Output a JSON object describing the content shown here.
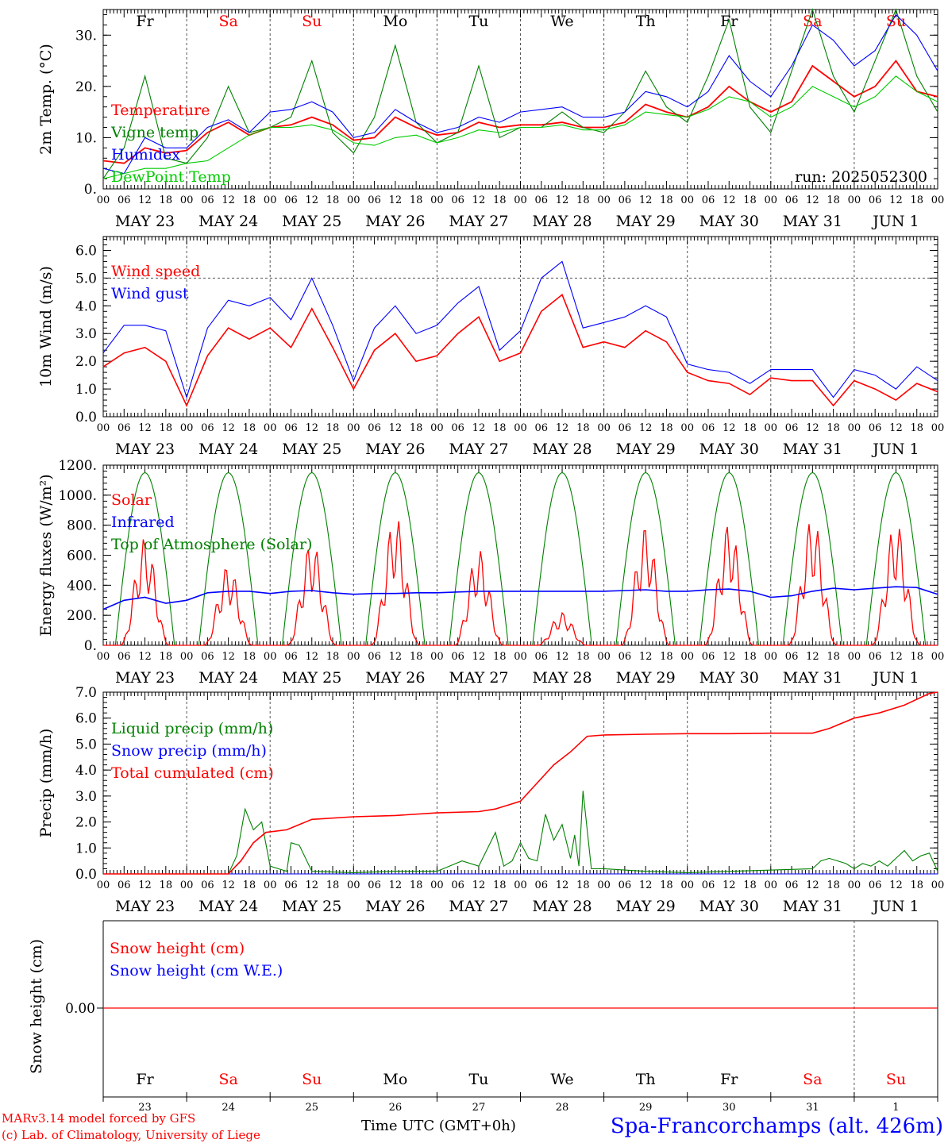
{
  "colors": {
    "red": "#ff0000",
    "blue": "#0000ff",
    "dark_green": "#008000",
    "light_green": "#00cc00",
    "axis": "#000000",
    "dashed": "#555555"
  },
  "days": {
    "dates": [
      "MAY 23",
      "MAY 24",
      "MAY 25",
      "MAY 26",
      "MAY 27",
      "MAY 28",
      "MAY 29",
      "MAY 30",
      "MAY 31",
      "JUN  1"
    ],
    "weekdays": [
      "Fr",
      "Sa",
      "Su",
      "Mo",
      "Tu",
      "We",
      "Th",
      "Fr",
      "Sa",
      "Su"
    ],
    "weekend": [
      false,
      true,
      true,
      false,
      false,
      false,
      false,
      false,
      true,
      true
    ],
    "day_numbers": [
      "23",
      "24",
      "25",
      "26",
      "27",
      "28",
      "29",
      "30",
      "31",
      "1"
    ],
    "hour_ticks": [
      "00",
      "06",
      "12",
      "18"
    ],
    "end_tick": "00"
  },
  "footer": {
    "credit_1": "MARv3.14 model forced by GFS",
    "credit_2": "(c) Lab. of Climatology, University of Liege",
    "time_label": "Time UTC (GMT+0h)",
    "station": "Spa-Francorchamps (alt. 426m)"
  },
  "chart_data": [
    {
      "id": "temperature",
      "type": "line",
      "ylabel": "2m Temp. (°C)",
      "ylim": [
        0,
        35
      ],
      "yticks": [
        0,
        10,
        20,
        30
      ],
      "yticklabels": [
        "0.",
        "10.",
        "20.",
        "30."
      ],
      "annotation": "run: 2025052300",
      "x_unit": "days since 2025-05-23 00 UTC",
      "x": [
        0,
        0.25,
        0.5,
        0.75,
        1,
        1.25,
        1.5,
        1.75,
        2,
        2.25,
        2.5,
        2.75,
        3,
        3.25,
        3.5,
        3.75,
        4,
        4.25,
        4.5,
        4.75,
        5,
        5.25,
        5.5,
        5.75,
        6,
        6.25,
        6.5,
        6.75,
        7,
        7.25,
        7.5,
        7.75,
        8,
        8.25,
        8.5,
        8.75,
        9,
        9.25,
        9.5,
        9.75,
        10
      ],
      "series": [
        {
          "name": "Temperature",
          "color": "#ff0000",
          "values": [
            5.5,
            5,
            8,
            7,
            7.5,
            11,
            13,
            10.5,
            12,
            12.5,
            14,
            12.5,
            9.5,
            10,
            14,
            12,
            10.5,
            11,
            13,
            12,
            12.5,
            12.5,
            13,
            12,
            12,
            13,
            16.5,
            15,
            14,
            16,
            20,
            17,
            15,
            17,
            24,
            21,
            18,
            20,
            25,
            19,
            18
          ]
        },
        {
          "name": "Vigne temp",
          "color": "#008000",
          "values": [
            2,
            8,
            22,
            6,
            5,
            10,
            20,
            11,
            12,
            14,
            25,
            11,
            7,
            14,
            28,
            13,
            9,
            11,
            24,
            10,
            12,
            12,
            15,
            12,
            11,
            15,
            23,
            16,
            13,
            22,
            33,
            16,
            11,
            23,
            35,
            22,
            15,
            25,
            35,
            22,
            15
          ]
        },
        {
          "name": "Humidex",
          "color": "#0000ff",
          "values": [
            4,
            3,
            10,
            8,
            8,
            12,
            13.5,
            11,
            15,
            15.5,
            17,
            15,
            10,
            11,
            15.5,
            13,
            11,
            12,
            14,
            13,
            15,
            15.5,
            16,
            14,
            14,
            15,
            19,
            18,
            16,
            19,
            26,
            21,
            18,
            24,
            32,
            29,
            24,
            27,
            34,
            30,
            23
          ]
        },
        {
          "name": "DewPoint Temp",
          "color": "#00cc00",
          "values": [
            2,
            3,
            4,
            4,
            5,
            5.5,
            8,
            10.5,
            12,
            12,
            12.5,
            11.5,
            9,
            8.5,
            10,
            10.5,
            9,
            10,
            11.5,
            11,
            12,
            12,
            12.5,
            11.5,
            11.5,
            12.5,
            15,
            14.5,
            14,
            15.5,
            18,
            17,
            14,
            16,
            20,
            18,
            16,
            18,
            22,
            19,
            17
          ]
        }
      ]
    },
    {
      "id": "wind",
      "type": "line",
      "ylabel": "10m Wind (m/s)",
      "ylim": [
        0,
        6.5
      ],
      "yticks": [
        0,
        1,
        2,
        3,
        4,
        5,
        6
      ],
      "yticklabels": [
        "0.0",
        "1.0",
        "2.0",
        "3.0",
        "4.0",
        "5.0",
        "6.0"
      ],
      "dashed_level": 5,
      "x_unit": "days since 2025-05-23 00 UTC",
      "x": [
        0,
        0.25,
        0.5,
        0.75,
        1,
        1.25,
        1.5,
        1.75,
        2,
        2.25,
        2.5,
        2.75,
        3,
        3.25,
        3.5,
        3.75,
        4,
        4.25,
        4.5,
        4.75,
        5,
        5.25,
        5.5,
        5.75,
        6,
        6.25,
        6.5,
        6.75,
        7,
        7.25,
        7.5,
        7.75,
        8,
        8.25,
        8.5,
        8.75,
        9,
        9.25,
        9.5,
        9.75,
        10
      ],
      "series": [
        {
          "name": "Wind speed",
          "color": "#ff0000",
          "values": [
            1.8,
            2.3,
            2.5,
            2.0,
            0.4,
            2.2,
            3.2,
            2.8,
            3.2,
            2.5,
            3.9,
            2.5,
            1.0,
            2.4,
            3.0,
            2.0,
            2.2,
            3.0,
            3.6,
            2.0,
            2.3,
            3.8,
            4.4,
            2.5,
            2.7,
            2.5,
            3.1,
            2.7,
            1.6,
            1.3,
            1.2,
            0.8,
            1.4,
            1.3,
            1.3,
            0.4,
            1.3,
            1.0,
            0.6,
            1.2,
            0.9
          ]
        },
        {
          "name": "Wind gust",
          "color": "#0000ff",
          "values": [
            2.3,
            3.3,
            3.3,
            3.1,
            0.7,
            3.2,
            4.2,
            4.0,
            4.3,
            3.5,
            5.0,
            3.3,
            1.3,
            3.2,
            4.0,
            3.0,
            3.3,
            4.1,
            4.7,
            2.4,
            3.1,
            5.0,
            5.6,
            3.2,
            3.4,
            3.6,
            4.0,
            3.6,
            1.9,
            1.7,
            1.6,
            1.2,
            1.7,
            1.7,
            1.7,
            0.7,
            1.7,
            1.5,
            1.0,
            1.8,
            1.3
          ]
        }
      ]
    },
    {
      "id": "energy",
      "type": "line",
      "ylabel": "Energy fluxes (W/m²)",
      "ylim": [
        0,
        1200
      ],
      "yticks": [
        0,
        200,
        400,
        600,
        800,
        1000,
        1200
      ],
      "yticklabels": [
        "0.",
        "200.",
        "400.",
        "600.",
        "800.",
        "1000.",
        "1200."
      ],
      "x_unit": "days since 2025-05-23 00 UTC",
      "toa_peak": 1150,
      "solar_daily_peaks": [
        720,
        540,
        700,
        870,
        640,
        220,
        800,
        820,
        860,
        830
      ],
      "infrared_values": [
        240,
        300,
        320,
        280,
        300,
        350,
        360,
        360,
        345,
        360,
        365,
        350,
        340,
        345,
        345,
        350,
        350,
        355,
        360,
        360,
        360,
        360,
        360,
        360,
        360,
        365,
        370,
        360,
        360,
        370,
        375,
        360,
        320,
        330,
        360,
        380,
        370,
        380,
        390,
        385,
        340
      ],
      "series": [
        {
          "name": "Solar",
          "color": "#ff0000"
        },
        {
          "name": "Infrared",
          "color": "#0000ff"
        },
        {
          "name": "Top of Atmosphere (Solar)",
          "color": "#008000"
        }
      ]
    },
    {
      "id": "precip",
      "type": "line",
      "ylabel": "Precip (mm/h)",
      "ylim": [
        0,
        7
      ],
      "yticks": [
        0,
        1,
        2,
        3,
        4,
        5,
        6,
        7
      ],
      "yticklabels": [
        "0.0",
        "1.0",
        "2.0",
        "3.0",
        "4.0",
        "5.0",
        "6.0",
        "7.0"
      ],
      "x_unit": "days since 2025-05-23 00 UTC",
      "liquid_x": [
        0,
        1.5,
        1.6,
        1.7,
        1.75,
        1.8,
        1.9,
        2.0,
        2.1,
        2.2,
        2.25,
        2.35,
        2.5,
        3.0,
        3.5,
        4.0,
        4.3,
        4.5,
        4.7,
        4.8,
        4.9,
        5.0,
        5.1,
        5.2,
        5.3,
        5.4,
        5.5,
        5.6,
        5.65,
        5.7,
        5.75,
        5.85,
        6.0,
        6.5,
        7.0,
        8.5,
        8.6,
        8.7,
        8.8,
        8.9,
        9.0,
        9.1,
        9.2,
        9.3,
        9.4,
        9.5,
        9.6,
        9.7,
        9.8,
        9.9,
        10.0
      ],
      "liquid_y": [
        0,
        0,
        0.7,
        2.5,
        2.1,
        1.7,
        2.0,
        0.3,
        0.2,
        0.1,
        1.2,
        1.1,
        0.1,
        0.05,
        0.1,
        0.1,
        0.5,
        0.3,
        1.6,
        0.3,
        0.5,
        1.2,
        0.6,
        0.5,
        2.3,
        1.3,
        1.9,
        0.6,
        1.5,
        0.3,
        3.2,
        0.2,
        0.2,
        0.1,
        0.05,
        0.2,
        0.5,
        0.6,
        0.5,
        0.4,
        0.2,
        0.4,
        0.3,
        0.5,
        0.3,
        0.6,
        0.9,
        0.5,
        0.7,
        0.8,
        0.1
      ],
      "cumul_x": [
        0,
        1.5,
        1.65,
        1.8,
        1.95,
        2.2,
        2.5,
        3.0,
        3.5,
        4.0,
        4.5,
        4.7,
        5.0,
        5.2,
        5.4,
        5.6,
        5.8,
        6.0,
        6.5,
        7.0,
        7.5,
        8.0,
        8.5,
        8.7,
        9.0,
        9.3,
        9.6,
        9.9,
        10.0
      ],
      "cumul_y": [
        0,
        0,
        0.5,
        1.2,
        1.6,
        1.7,
        2.1,
        2.2,
        2.25,
        2.35,
        2.4,
        2.5,
        2.8,
        3.5,
        4.2,
        4.7,
        5.3,
        5.35,
        5.38,
        5.4,
        5.4,
        5.42,
        5.42,
        5.6,
        6.0,
        6.2,
        6.5,
        6.95,
        7.0
      ],
      "series": [
        {
          "name": "Liquid precip (mm/h)",
          "color": "#008000"
        },
        {
          "name": "Snow precip (mm/h)",
          "color": "#0000ff"
        },
        {
          "name": "Total cumulated (cm)",
          "color": "#ff0000"
        }
      ]
    },
    {
      "id": "snow",
      "type": "line",
      "ylabel": "Snow height (cm)",
      "ytick_label": "0.00",
      "series": [
        {
          "name": "Snow height (cm)",
          "color": "#ff0000",
          "values": [
            0,
            0
          ]
        },
        {
          "name": "Snow height (cm W.E.)",
          "color": "#0000ff",
          "values": [
            0,
            0
          ]
        }
      ]
    }
  ]
}
